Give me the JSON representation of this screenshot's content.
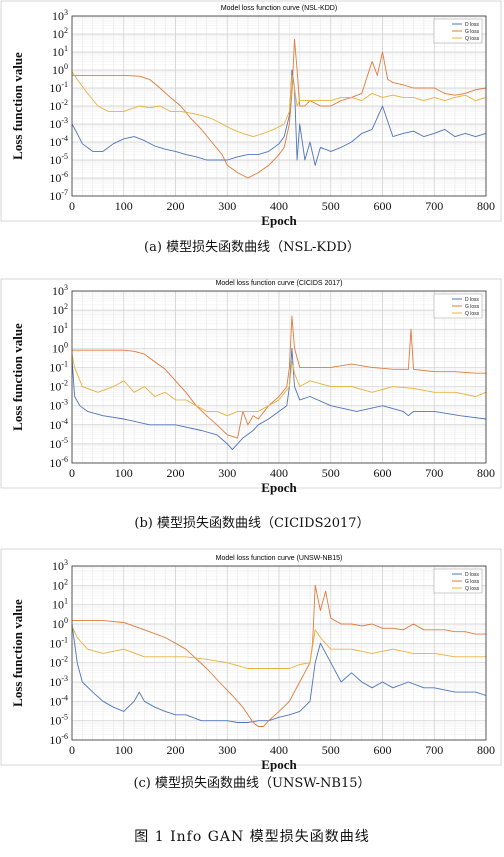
{
  "figure_caption": "图 1    Info GAN 模型损失函数曲线",
  "colors": {
    "d_loss": "#4f74bd",
    "g_loss": "#e07a3b",
    "q_loss": "#e8b13c"
  },
  "chart_data": [
    {
      "type": "line",
      "title": "Model loss function curve (NSL-KDD)",
      "caption": "(a) 模型损失函数曲线（NSL-KDD）",
      "xlabel": "Epoch",
      "ylabel": "Loss function value",
      "xlim": [
        0,
        800
      ],
      "ylim": [
        1e-07,
        1000
      ],
      "yscale": "log",
      "xticks": [
        "0",
        "100",
        "200",
        "300",
        "400",
        "500",
        "600",
        "700",
        "800"
      ],
      "yticks": [
        "10-7",
        "10-6",
        "10-5",
        "10-4",
        "10-3",
        "10-2",
        "10-1",
        "100",
        "101",
        "102",
        "103"
      ],
      "grid": true,
      "legend_position": "top-right",
      "series": [
        {
          "name": "D loss",
          "x": [
            0,
            10,
            20,
            40,
            60,
            80,
            100,
            120,
            140,
            160,
            180,
            200,
            220,
            240,
            260,
            280,
            300,
            320,
            340,
            360,
            380,
            400,
            410,
            420,
            425,
            430,
            435,
            440,
            450,
            460,
            470,
            480,
            500,
            520,
            540,
            560,
            580,
            600,
            620,
            640,
            660,
            680,
            700,
            720,
            740,
            760,
            780,
            800
          ],
          "y": [
            0.001,
            0.0003,
            8e-05,
            3e-05,
            3e-05,
            8e-05,
            0.00015,
            0.0002,
            0.00012,
            6e-05,
            4e-05,
            3e-05,
            2e-05,
            1.5e-05,
            1e-05,
            1e-05,
            1e-05,
            1.5e-05,
            2e-05,
            2e-05,
            3e-05,
            8e-05,
            0.0002,
            0.003,
            1.0,
            0.1,
            1e-05,
            0.001,
            1e-05,
            0.0001,
            5e-06,
            5e-05,
            3e-05,
            5e-05,
            0.0001,
            0.0003,
            0.0005,
            0.01,
            0.0002,
            0.0003,
            0.0004,
            0.0002,
            0.0003,
            0.0005,
            0.0002,
            0.0003,
            0.0002,
            0.0003
          ]
        },
        {
          "name": "G loss",
          "x": [
            0,
            20,
            50,
            100,
            130,
            150,
            170,
            190,
            210,
            230,
            250,
            270,
            290,
            300,
            320,
            340,
            360,
            380,
            400,
            410,
            420,
            425,
            430,
            435,
            440,
            450,
            460,
            480,
            500,
            520,
            540,
            560,
            580,
            590,
            600,
            610,
            620,
            640,
            660,
            680,
            700,
            720,
            740,
            760,
            780,
            800
          ],
          "y": [
            0.5,
            0.5,
            0.5,
            0.5,
            0.45,
            0.3,
            0.1,
            0.03,
            0.01,
            0.002,
            0.0005,
            0.0001,
            2e-05,
            5e-06,
            2e-06,
            1e-06,
            2e-06,
            5e-06,
            2e-05,
            5e-05,
            0.001,
            0.05,
            50,
            1.0,
            0.01,
            0.01,
            0.02,
            0.01,
            0.01,
            0.02,
            0.03,
            0.05,
            3.0,
            0.5,
            10,
            0.3,
            0.2,
            0.15,
            0.1,
            0.1,
            0.1,
            0.05,
            0.04,
            0.05,
            0.08,
            0.1
          ]
        },
        {
          "name": "Q loss",
          "x": [
            0,
            10,
            30,
            50,
            70,
            100,
            130,
            150,
            170,
            190,
            210,
            230,
            250,
            270,
            290,
            310,
            330,
            350,
            370,
            390,
            410,
            420,
            425,
            430,
            435,
            440,
            460,
            480,
            500,
            520,
            540,
            560,
            580,
            600,
            620,
            640,
            660,
            680,
            700,
            720,
            740,
            760,
            780,
            800
          ],
          "y": [
            0.8,
            0.3,
            0.05,
            0.01,
            0.005,
            0.005,
            0.01,
            0.008,
            0.01,
            0.005,
            0.005,
            0.004,
            0.003,
            0.002,
            0.001,
            0.0005,
            0.0003,
            0.0002,
            0.0003,
            0.0005,
            0.001,
            0.005,
            0.5,
            0.1,
            0.01,
            0.02,
            0.02,
            0.02,
            0.02,
            0.03,
            0.03,
            0.02,
            0.05,
            0.03,
            0.04,
            0.03,
            0.03,
            0.02,
            0.03,
            0.02,
            0.03,
            0.04,
            0.02,
            0.03
          ]
        }
      ]
    },
    {
      "type": "line",
      "title": "Model loss function curve (CICIDS 2017)",
      "caption": "(b) 模型损失函数曲线（CICIDS2017）",
      "xlabel": "Epoch",
      "ylabel": "Loss function value",
      "xlim": [
        0,
        800
      ],
      "ylim": [
        1e-06,
        1000
      ],
      "yscale": "log",
      "xticks": [
        "0",
        "100",
        "200",
        "300",
        "400",
        "500",
        "600",
        "700",
        "800"
      ],
      "yticks": [
        "10-6",
        "10-5",
        "10-4",
        "10-3",
        "10-2",
        "10-1",
        "100",
        "101",
        "102",
        "103"
      ],
      "grid": true,
      "legend_position": "top-right",
      "series": [
        {
          "name": "D loss",
          "x": [
            0,
            5,
            15,
            30,
            60,
            100,
            150,
            200,
            250,
            280,
            300,
            310,
            330,
            350,
            360,
            380,
            400,
            415,
            420,
            425,
            430,
            440,
            460,
            500,
            550,
            600,
            640,
            650,
            660,
            700,
            750,
            800
          ],
          "y": [
            0.3,
            0.003,
            0.001,
            0.0005,
            0.0003,
            0.0002,
            0.0001,
            0.0001,
            5e-05,
            3e-05,
            1e-05,
            5e-06,
            2e-05,
            5e-05,
            0.0001,
            0.0002,
            0.0005,
            0.001,
            0.01,
            1.0,
            0.01,
            0.002,
            0.003,
            0.001,
            0.0005,
            0.001,
            0.0005,
            0.0003,
            0.0005,
            0.0005,
            0.0003,
            0.0002
          ]
        },
        {
          "name": "G loss",
          "x": [
            0,
            50,
            100,
            120,
            140,
            160,
            180,
            200,
            220,
            240,
            260,
            280,
            300,
            320,
            330,
            340,
            350,
            360,
            380,
            400,
            415,
            420,
            425,
            430,
            440,
            460,
            500,
            540,
            580,
            620,
            650,
            655,
            660,
            700,
            740,
            780,
            800
          ],
          "y": [
            0.8,
            0.8,
            0.8,
            0.7,
            0.5,
            0.2,
            0.08,
            0.02,
            0.005,
            0.001,
            0.0003,
            0.0001,
            3e-05,
            2e-05,
            0.0005,
            0.0001,
            0.0003,
            0.0002,
            0.001,
            0.003,
            0.01,
            0.1,
            50,
            1.0,
            0.1,
            0.1,
            0.1,
            0.15,
            0.1,
            0.08,
            0.08,
            10,
            0.08,
            0.06,
            0.06,
            0.05,
            0.05
          ]
        },
        {
          "name": "Q loss",
          "x": [
            0,
            5,
            20,
            50,
            80,
            100,
            120,
            140,
            160,
            180,
            200,
            220,
            240,
            260,
            280,
            300,
            320,
            340,
            360,
            380,
            400,
            420,
            425,
            430,
            440,
            460,
            500,
            540,
            580,
            620,
            660,
            700,
            740,
            780,
            800
          ],
          "y": [
            0.5,
            0.1,
            0.01,
            0.005,
            0.01,
            0.02,
            0.005,
            0.01,
            0.003,
            0.005,
            0.002,
            0.002,
            0.001,
            0.0005,
            0.0005,
            0.0003,
            0.0005,
            0.0005,
            0.0005,
            0.001,
            0.002,
            0.01,
            0.2,
            0.05,
            0.01,
            0.02,
            0.01,
            0.01,
            0.005,
            0.01,
            0.008,
            0.005,
            0.005,
            0.003,
            0.005
          ]
        }
      ]
    },
    {
      "type": "line",
      "title": "Model loss function curve (UNSW-NB15)",
      "caption": "(c) 模型损失函数曲线（UNSW-NB15）",
      "xlabel": "Epoch",
      "ylabel": "Loss function value",
      "xlim": [
        0,
        800
      ],
      "ylim": [
        1e-06,
        1000
      ],
      "yscale": "log",
      "xticks": [
        "0",
        "100",
        "200",
        "300",
        "400",
        "500",
        "600",
        "700",
        "800"
      ],
      "yticks": [
        "10-6",
        "10-5",
        "10-4",
        "10-3",
        "10-2",
        "10-1",
        "100",
        "101",
        "102",
        "103"
      ],
      "grid": true,
      "legend_position": "top-right",
      "series": [
        {
          "name": "D loss",
          "x": [
            0,
            5,
            10,
            20,
            40,
            60,
            80,
            100,
            120,
            130,
            140,
            160,
            180,
            200,
            220,
            250,
            280,
            300,
            320,
            340,
            360,
            380,
            400,
            420,
            440,
            460,
            470,
            480,
            500,
            520,
            540,
            560,
            580,
            600,
            620,
            650,
            680,
            700,
            740,
            780,
            800
          ],
          "y": [
            1.0,
            0.1,
            0.01,
            0.001,
            0.0003,
            0.0001,
            5e-05,
            3e-05,
            0.0001,
            0.0003,
            0.0001,
            5e-05,
            3e-05,
            2e-05,
            2e-05,
            1e-05,
            1e-05,
            1e-05,
            8e-06,
            8e-06,
            1e-05,
            1e-05,
            1.5e-05,
            2e-05,
            3e-05,
            0.0001,
            0.01,
            0.1,
            0.01,
            0.001,
            0.003,
            0.001,
            0.0005,
            0.001,
            0.0005,
            0.001,
            0.0005,
            0.0005,
            0.0003,
            0.0003,
            0.0002
          ]
        },
        {
          "name": "G loss",
          "x": [
            0,
            30,
            60,
            100,
            140,
            180,
            220,
            260,
            290,
            310,
            330,
            340,
            350,
            360,
            370,
            380,
            400,
            420,
            440,
            460,
            465,
            470,
            480,
            490,
            500,
            520,
            540,
            560,
            580,
            600,
            620,
            640,
            660,
            680,
            700,
            720,
            740,
            760,
            780,
            800
          ],
          "y": [
            1.5,
            1.5,
            1.5,
            1.2,
            0.5,
            0.2,
            0.05,
            0.005,
            0.0007,
            0.0002,
            5e-05,
            2e-05,
            8e-06,
            5e-06,
            5e-06,
            1e-05,
            3e-05,
            0.0001,
            0.001,
            0.01,
            0.1,
            100,
            5,
            50,
            2,
            1,
            1,
            0.8,
            1,
            0.6,
            0.6,
            0.5,
            1,
            0.5,
            0.5,
            0.5,
            0.4,
            0.4,
            0.3,
            0.3
          ]
        },
        {
          "name": "Q loss",
          "x": [
            0,
            10,
            30,
            60,
            100,
            140,
            180,
            220,
            260,
            300,
            340,
            360,
            380,
            400,
            420,
            440,
            460,
            470,
            480,
            500,
            540,
            580,
            620,
            660,
            700,
            740,
            780,
            800
          ],
          "y": [
            0.8,
            0.2,
            0.05,
            0.03,
            0.05,
            0.02,
            0.02,
            0.02,
            0.015,
            0.01,
            0.005,
            0.005,
            0.005,
            0.005,
            0.005,
            0.008,
            0.01,
            0.5,
            0.2,
            0.05,
            0.05,
            0.03,
            0.05,
            0.03,
            0.03,
            0.02,
            0.02,
            0.02
          ]
        }
      ]
    }
  ]
}
